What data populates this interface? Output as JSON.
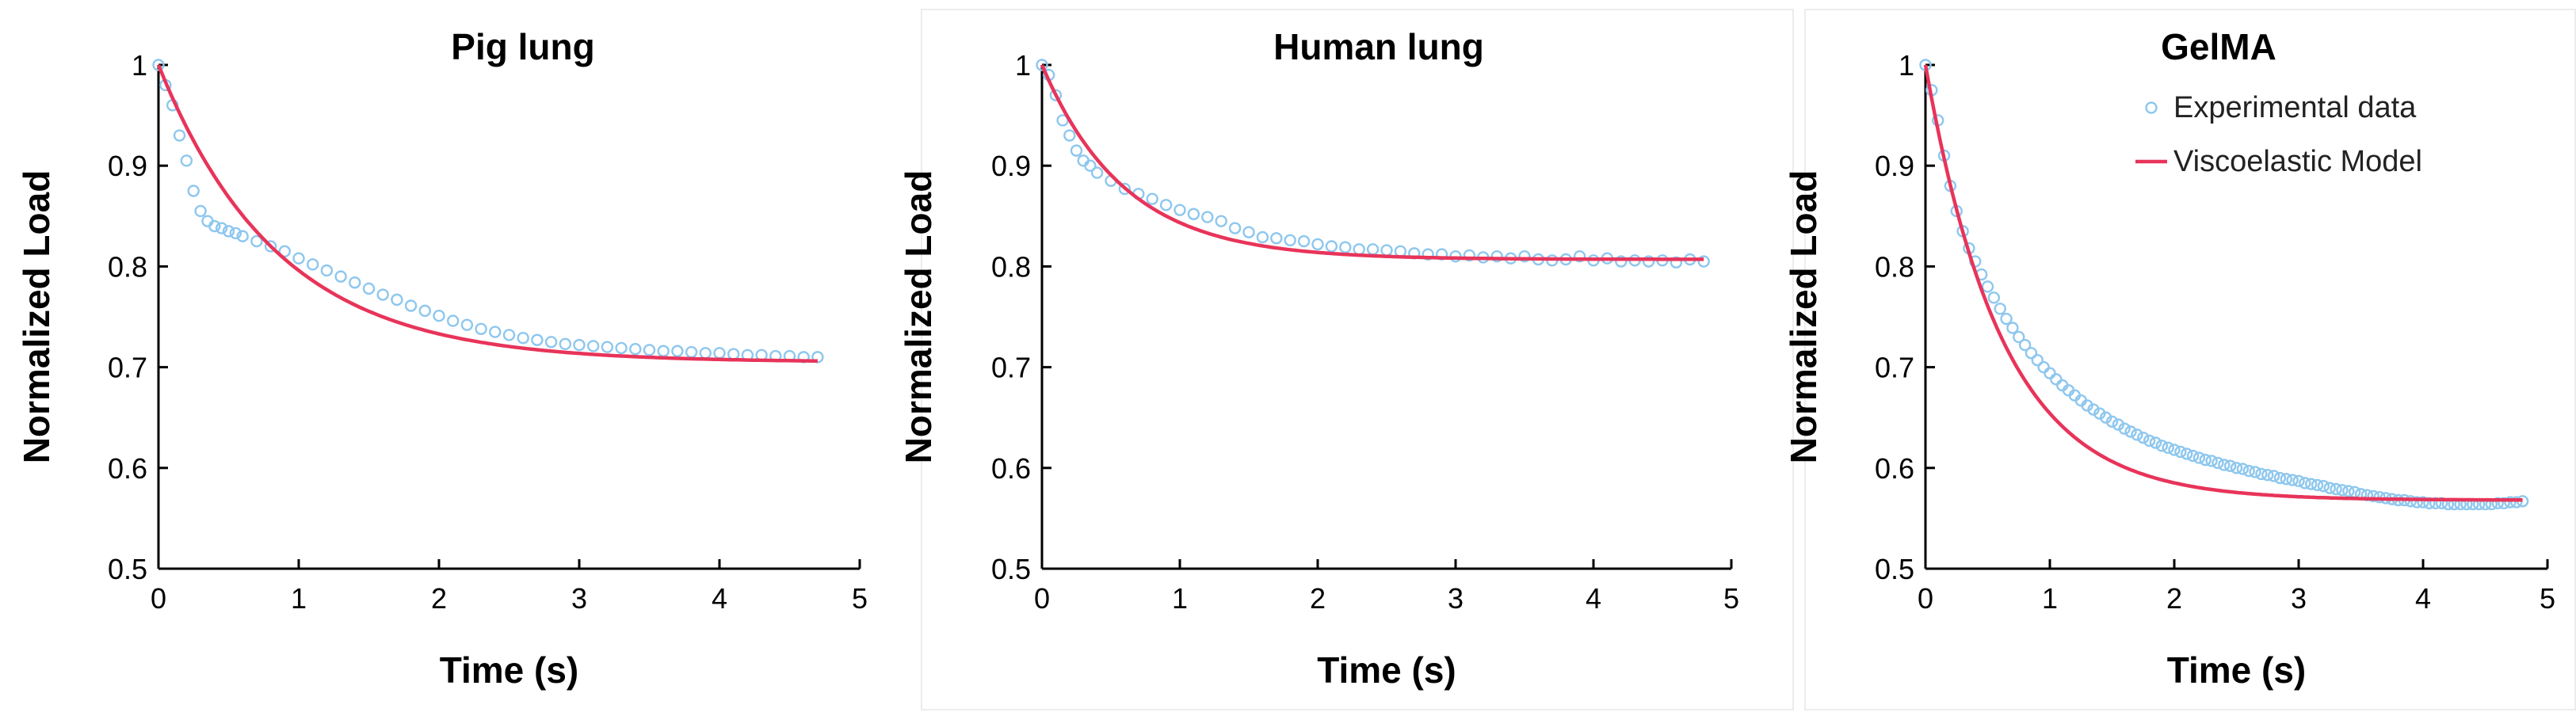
{
  "chart_data": [
    {
      "type": "scatter",
      "title": "Pig lung",
      "xlabel": "Time (s)",
      "ylabel": "Normalized Load",
      "xlim": [
        0,
        5
      ],
      "ylim": [
        0.5,
        1
      ],
      "xticks": [
        "0",
        "1",
        "2",
        "3",
        "4",
        "5"
      ],
      "yticks": [
        "0.5",
        "0.6",
        "0.7",
        "0.8",
        "0.9",
        "1"
      ],
      "grid": false,
      "legend": false,
      "series": [
        {
          "kind": "markers",
          "color": "#8ec7ee",
          "x": [
            0,
            0.05,
            0.1,
            0.15,
            0.2,
            0.25,
            0.3,
            0.35,
            0.4,
            0.45,
            0.5,
            0.55,
            0.6,
            0.7,
            0.8,
            0.9,
            1.0,
            1.1,
            1.2,
            1.3,
            1.4,
            1.5,
            1.6,
            1.7,
            1.8,
            1.9,
            2.0,
            2.1,
            2.2,
            2.3,
            2.4,
            2.5,
            2.6,
            2.7,
            2.8,
            2.9,
            3.0,
            3.1,
            3.2,
            3.3,
            3.4,
            3.5,
            3.6,
            3.7,
            3.8,
            3.9,
            4.0,
            4.1,
            4.2,
            4.3,
            4.4,
            4.5,
            4.6,
            4.7
          ],
          "y": [
            1.0,
            0.98,
            0.96,
            0.93,
            0.905,
            0.875,
            0.855,
            0.845,
            0.84,
            0.838,
            0.835,
            0.833,
            0.83,
            0.825,
            0.82,
            0.815,
            0.808,
            0.802,
            0.796,
            0.79,
            0.784,
            0.778,
            0.772,
            0.767,
            0.761,
            0.756,
            0.751,
            0.746,
            0.742,
            0.738,
            0.735,
            0.732,
            0.729,
            0.727,
            0.725,
            0.723,
            0.722,
            0.721,
            0.72,
            0.719,
            0.718,
            0.717,
            0.716,
            0.716,
            0.715,
            0.714,
            0.714,
            0.713,
            0.712,
            0.712,
            0.711,
            0.711,
            0.71,
            0.71
          ]
        },
        {
          "kind": "model",
          "color": "#e8345a",
          "y0": 1.0,
          "yinf": 0.705,
          "tau": 0.85,
          "xmax": 4.7
        }
      ]
    },
    {
      "type": "scatter",
      "title": "Human lung",
      "xlabel": "Time (s)",
      "ylabel": "Normalized Load",
      "xlim": [
        0,
        5
      ],
      "ylim": [
        0.5,
        1
      ],
      "xticks": [
        "0",
        "1",
        "2",
        "3",
        "4",
        "5"
      ],
      "yticks": [
        "0.5",
        "0.6",
        "0.7",
        "0.8",
        "0.9",
        "1"
      ],
      "grid": false,
      "legend": false,
      "series": [
        {
          "kind": "markers",
          "color": "#8ec7ee",
          "x": [
            0,
            0.05,
            0.1,
            0.15,
            0.2,
            0.25,
            0.3,
            0.35,
            0.4,
            0.5,
            0.6,
            0.7,
            0.8,
            0.9,
            1.0,
            1.1,
            1.2,
            1.3,
            1.4,
            1.5,
            1.6,
            1.7,
            1.8,
            1.9,
            2.0,
            2.1,
            2.2,
            2.3,
            2.4,
            2.5,
            2.6,
            2.7,
            2.8,
            2.9,
            3.0,
            3.1,
            3.2,
            3.3,
            3.4,
            3.5,
            3.6,
            3.7,
            3.8,
            3.9,
            4.0,
            4.1,
            4.2,
            4.3,
            4.4,
            4.5,
            4.6,
            4.7,
            4.8
          ],
          "y": [
            1.0,
            0.99,
            0.97,
            0.945,
            0.93,
            0.915,
            0.905,
            0.9,
            0.893,
            0.885,
            0.877,
            0.872,
            0.867,
            0.861,
            0.856,
            0.852,
            0.849,
            0.845,
            0.838,
            0.834,
            0.829,
            0.828,
            0.826,
            0.825,
            0.822,
            0.82,
            0.819,
            0.817,
            0.817,
            0.816,
            0.815,
            0.813,
            0.812,
            0.812,
            0.81,
            0.811,
            0.809,
            0.81,
            0.808,
            0.81,
            0.807,
            0.806,
            0.807,
            0.81,
            0.806,
            0.808,
            0.805,
            0.806,
            0.805,
            0.806,
            0.804,
            0.807,
            0.805
          ]
        },
        {
          "kind": "model",
          "color": "#e8345a",
          "y0": 1.0,
          "yinf": 0.807,
          "tau": 0.6,
          "xmax": 4.8
        }
      ]
    },
    {
      "type": "scatter",
      "title": "GelMA",
      "xlabel": "Time (s)",
      "ylabel": "Normalized Load",
      "xlim": [
        0,
        5
      ],
      "ylim": [
        0.5,
        1
      ],
      "xticks": [
        "0",
        "1",
        "2",
        "3",
        "4",
        "5"
      ],
      "yticks": [
        "0.5",
        "0.6",
        "0.7",
        "0.8",
        "0.9",
        "1"
      ],
      "grid": false,
      "legend": true,
      "legend_position": "top-right",
      "legend_entries": [
        "Experimental data",
        "Viscoelastic Model"
      ],
      "series": [
        {
          "kind": "markers",
          "name": "Experimental data",
          "color": "#8ec7ee",
          "x": [
            0,
            0.05,
            0.1,
            0.15,
            0.2,
            0.25,
            0.3,
            0.35,
            0.4,
            0.45,
            0.5,
            0.55,
            0.6,
            0.65,
            0.7,
            0.75,
            0.8,
            0.85,
            0.9,
            0.95,
            1.0,
            1.05,
            1.1,
            1.15,
            1.2,
            1.25,
            1.3,
            1.35,
            1.4,
            1.45,
            1.5,
            1.55,
            1.6,
            1.65,
            1.7,
            1.75,
            1.8,
            1.85,
            1.9,
            1.95,
            2.0,
            2.05,
            2.1,
            2.15,
            2.2,
            2.25,
            2.3,
            2.35,
            2.4,
            2.45,
            2.5,
            2.55,
            2.6,
            2.65,
            2.7,
            2.75,
            2.8,
            2.85,
            2.9,
            2.95,
            3.0,
            3.05,
            3.1,
            3.15,
            3.2,
            3.25,
            3.3,
            3.35,
            3.4,
            3.45,
            3.5,
            3.55,
            3.6,
            3.65,
            3.7,
            3.75,
            3.8,
            3.85,
            3.9,
            3.95,
            4.0,
            4.05,
            4.1,
            4.15,
            4.2,
            4.25,
            4.3,
            4.35,
            4.4,
            4.45,
            4.5,
            4.55,
            4.6,
            4.65,
            4.7,
            4.75,
            4.8
          ],
          "y": [
            1.0,
            0.975,
            0.945,
            0.91,
            0.88,
            0.855,
            0.835,
            0.818,
            0.805,
            0.792,
            0.78,
            0.769,
            0.758,
            0.748,
            0.739,
            0.73,
            0.722,
            0.714,
            0.707,
            0.7,
            0.694,
            0.688,
            0.682,
            0.677,
            0.672,
            0.667,
            0.662,
            0.658,
            0.654,
            0.65,
            0.646,
            0.643,
            0.639,
            0.636,
            0.633,
            0.63,
            0.627,
            0.625,
            0.622,
            0.62,
            0.618,
            0.616,
            0.614,
            0.612,
            0.61,
            0.608,
            0.607,
            0.605,
            0.603,
            0.602,
            0.6,
            0.599,
            0.597,
            0.596,
            0.594,
            0.593,
            0.592,
            0.59,
            0.589,
            0.588,
            0.587,
            0.585,
            0.584,
            0.583,
            0.582,
            0.58,
            0.579,
            0.578,
            0.577,
            0.576,
            0.574,
            0.573,
            0.572,
            0.571,
            0.57,
            0.569,
            0.568,
            0.568,
            0.567,
            0.566,
            0.566,
            0.565,
            0.565,
            0.565,
            0.564,
            0.564,
            0.564,
            0.564,
            0.564,
            0.564,
            0.564,
            0.564,
            0.565,
            0.565,
            0.566,
            0.566,
            0.567
          ]
        },
        {
          "kind": "model",
          "name": "Viscoelastic Model",
          "color": "#e8345a",
          "y0": 1.0,
          "yinf": 0.568,
          "tau": 0.62,
          "xmax": 4.8
        }
      ]
    }
  ]
}
